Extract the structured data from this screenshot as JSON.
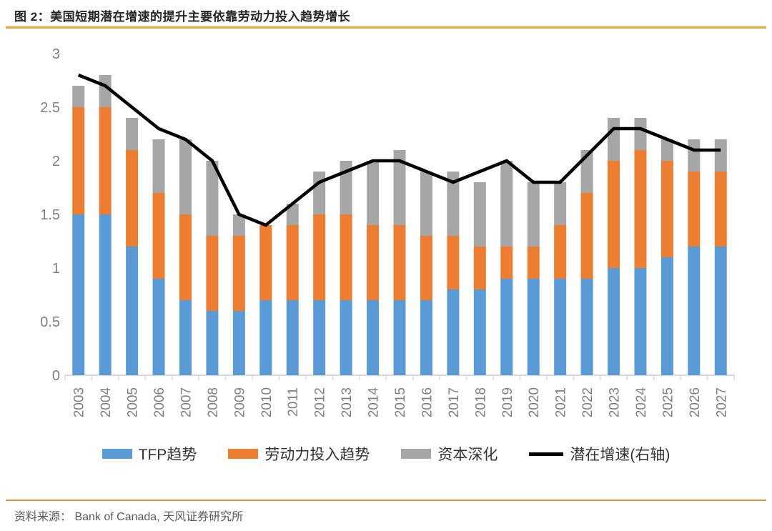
{
  "page": {
    "title": "图 2：美国短期潜在增速的提升主要依靠劳动力投入趋势增长",
    "source": "资料来源： Bank of Canada, 天风证券研究所"
  },
  "colors": {
    "accent_rule_top": "#EFA13A",
    "accent_rule_bottom": "#D99434",
    "axis_text": "#7F7F7F",
    "axis_line": "#D9D9D9",
    "tfp_blue": "#5B9BD5",
    "labor_orange": "#ED7D31",
    "capital_gray": "#A6A6A6",
    "potential_line": "#000000"
  },
  "chart_data": {
    "type": "bar",
    "subtype": "stacked-bar-with-line-overlay",
    "title": "图 2：美国短期潜在增速的提升主要依靠劳动力投入趋势增长",
    "xlabel": "",
    "ylabel": "",
    "ylim": [
      0,
      3
    ],
    "yticks": [
      0,
      0.5,
      1,
      1.5,
      2,
      2.5,
      3
    ],
    "ytick_labels": [
      "0",
      "0.5",
      "1",
      "1.5",
      "2",
      "2.5",
      "3"
    ],
    "grid": false,
    "legend_position": "bottom",
    "categories": [
      "2003",
      "2004",
      "2005",
      "2006",
      "2007",
      "2008",
      "2009",
      "2010",
      "2011",
      "2012",
      "2013",
      "2014",
      "2015",
      "2016",
      "2017",
      "2018",
      "2019",
      "2020",
      "2021",
      "2022",
      "2023",
      "2024",
      "2025",
      "2026",
      "2027"
    ],
    "series": [
      {
        "name": "TFP趋势",
        "type": "bar",
        "color": "#5B9BD5",
        "values": [
          1.5,
          1.5,
          1.2,
          0.9,
          0.7,
          0.6,
          0.6,
          0.7,
          0.7,
          0.7,
          0.7,
          0.7,
          0.7,
          0.7,
          0.8,
          0.8,
          0.9,
          0.9,
          0.9,
          0.9,
          1.0,
          1.0,
          1.1,
          1.2,
          1.2
        ]
      },
      {
        "name": "劳动力投入趋势",
        "type": "bar",
        "color": "#ED7D31",
        "values": [
          1.0,
          1.0,
          0.9,
          0.8,
          0.8,
          0.7,
          0.7,
          0.7,
          0.7,
          0.8,
          0.8,
          0.7,
          0.7,
          0.6,
          0.5,
          0.4,
          0.3,
          0.3,
          0.5,
          0.8,
          1.0,
          1.1,
          0.9,
          0.7,
          0.7
        ]
      },
      {
        "name": "资本深化",
        "type": "bar",
        "color": "#A6A6A6",
        "values": [
          0.2,
          0.3,
          0.3,
          0.5,
          0.7,
          0.7,
          0.2,
          0.0,
          0.2,
          0.4,
          0.5,
          0.6,
          0.7,
          0.6,
          0.6,
          0.6,
          0.8,
          0.6,
          0.4,
          0.4,
          0.4,
          0.3,
          0.2,
          0.3,
          0.3
        ]
      },
      {
        "name": "潜在增速(右轴)",
        "type": "line",
        "color": "#000000",
        "values": [
          2.8,
          2.7,
          2.5,
          2.3,
          2.2,
          2.0,
          1.5,
          1.4,
          1.6,
          1.8,
          1.9,
          2.0,
          2.0,
          1.9,
          1.8,
          1.9,
          2.0,
          1.8,
          1.8,
          2.05,
          2.3,
          2.3,
          2.2,
          2.1,
          2.1
        ]
      }
    ]
  }
}
